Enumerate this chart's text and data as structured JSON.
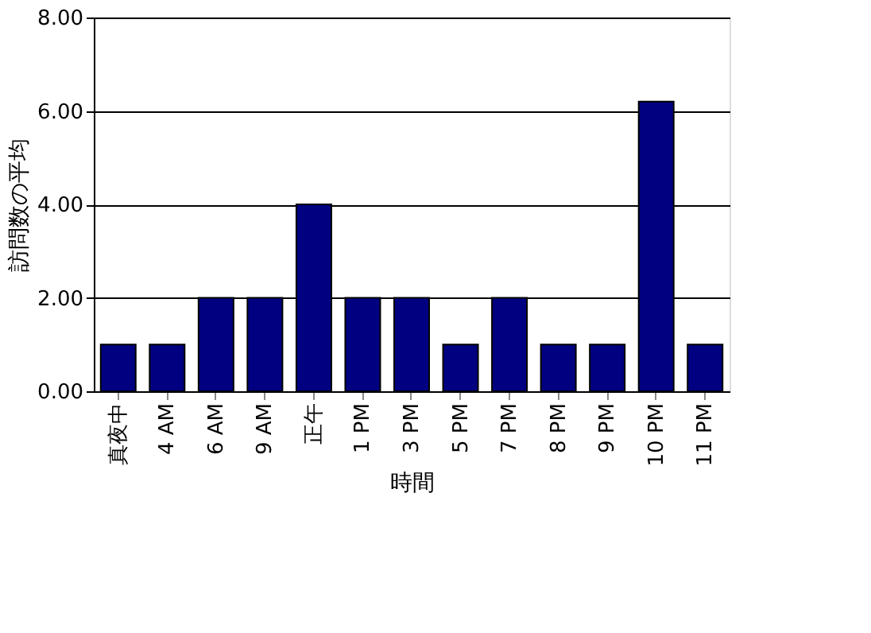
{
  "chart_data": {
    "type": "bar",
    "xlabel": "時間",
    "ylabel": "訪問数の平均",
    "categories": [
      "真夜中",
      "4 AM",
      "6 AM",
      "9 AM",
      "正午",
      "1 PM",
      "3 PM",
      "5 PM",
      "7 PM",
      "8 PM",
      "9 PM",
      "10 PM",
      "11 PM"
    ],
    "values": [
      1,
      1,
      2,
      2,
      4,
      2,
      2,
      1,
      2,
      1,
      1,
      6.2,
      1
    ],
    "color": "#000080",
    "ylim": [
      0,
      8
    ],
    "yticks": [
      {
        "value": 0,
        "label": "0.00"
      },
      {
        "value": 2,
        "label": "2.00"
      },
      {
        "value": 4,
        "label": "4.00"
      },
      {
        "value": 6,
        "label": "6.00"
      },
      {
        "value": 8,
        "label": "8.00"
      }
    ],
    "grid": "y"
  }
}
